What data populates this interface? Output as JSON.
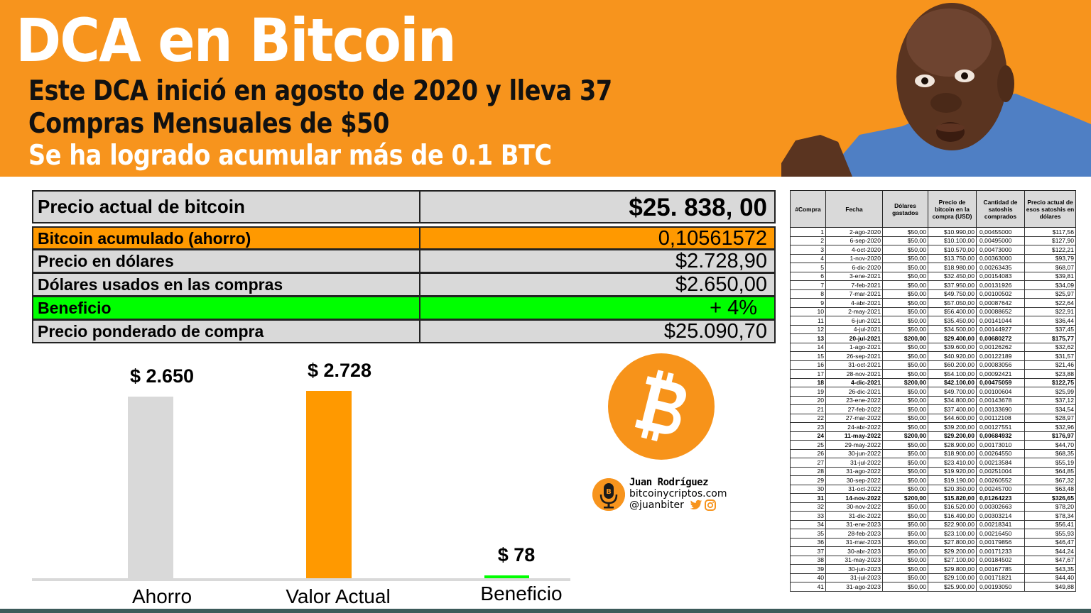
{
  "header": {
    "title": "DCA en Bitcoin",
    "subtitle_line1": "Este DCA inició en agosto de 2020 y lleva 37",
    "subtitle_line2": "Compras Mensuales de $50",
    "subtitle_line3": "Se ha logrado acumular más de 0.1 BTC",
    "background_color": "#f7941d"
  },
  "photo": {
    "description": "surprised man in blue shirt"
  },
  "summary": {
    "rows": [
      {
        "label": "Precio actual de bitcoin",
        "value": "$25. 838, 00"
      },
      {
        "label": "Bitcoin acumulado (ahorro)",
        "value": "0,10561572"
      },
      {
        "label": "Precio en dólares",
        "value": "$2.728,90"
      },
      {
        "label": "Dólares usados en las compras",
        "value": "$2.650,00"
      },
      {
        "label": "Beneficio",
        "value": "+ 4%"
      },
      {
        "label": "Precio ponderado de compra",
        "value": "$25.090,70"
      }
    ]
  },
  "chart_data": {
    "type": "bar",
    "title": "",
    "categories": [
      "Ahorro",
      "Valor Actual",
      "Beneficio"
    ],
    "values": [
      2650,
      2728,
      78
    ],
    "value_labels": [
      "$ 2.650",
      "$ 2.728",
      "$ 78"
    ],
    "colors": [
      "#d9d9d9",
      "#ff9900",
      "#00ff00"
    ],
    "xlabel": "",
    "ylabel": "",
    "grid": false,
    "legend": "none"
  },
  "author": {
    "name": "Juan Rodríguez",
    "site": "bitcoinycriptos.com",
    "handle": "@juanbiter",
    "icons": [
      "podcast-mic-icon",
      "twitter-icon",
      "instagram-icon"
    ]
  },
  "purchases": {
    "columns": [
      "#Compra",
      "Fecha",
      "Dólares gastados",
      "Precio de bitcoin en la compra (USD)",
      "Cantidad de satoshis comprados",
      "Precio actual de esos satoshis en dólares"
    ],
    "rows": [
      [
        "1",
        "2-ago-2020",
        "$50,00",
        "$10.990,00",
        "0,00455000",
        "$117,56"
      ],
      [
        "2",
        "6-sep-2020",
        "$50,00",
        "$10.100,00",
        "0,00495000",
        "$127,90"
      ],
      [
        "3",
        "4-oct-2020",
        "$50,00",
        "$10.570,00",
        "0,00473000",
        "$122,21"
      ],
      [
        "4",
        "1-nov-2020",
        "$50,00",
        "$13.750,00",
        "0,00363000",
        "$93,79"
      ],
      [
        "5",
        "6-dic-2020",
        "$50,00",
        "$18.980,00",
        "0,00263435",
        "$68,07"
      ],
      [
        "6",
        "3-ene-2021",
        "$50,00",
        "$32.450,00",
        "0,00154083",
        "$39,81"
      ],
      [
        "7",
        "7-feb-2021",
        "$50,00",
        "$37.950,00",
        "0,00131926",
        "$34,09"
      ],
      [
        "8",
        "7-mar-2021",
        "$50,00",
        "$49.750,00",
        "0,00100502",
        "$25,97"
      ],
      [
        "9",
        "4-abr-2021",
        "$50,00",
        "$57.050,00",
        "0,00087642",
        "$22,64"
      ],
      [
        "10",
        "2-may-2021",
        "$50,00",
        "$56.400,00",
        "0,00088652",
        "$22,91"
      ],
      [
        "11",
        "6-jun-2021",
        "$50,00",
        "$35.450,00",
        "0,00141044",
        "$36,44"
      ],
      [
        "12",
        "4-jul-2021",
        "$50,00",
        "$34.500,00",
        "0,00144927",
        "$37,45"
      ],
      [
        "13",
        "20-jul-2021",
        "$200,00",
        "$29.400,00",
        "0,00680272",
        "$175,77"
      ],
      [
        "14",
        "1-ago-2021",
        "$50,00",
        "$39.600,00",
        "0,00126262",
        "$32,62"
      ],
      [
        "15",
        "26-sep-2021",
        "$50,00",
        "$40.920,00",
        "0,00122189",
        "$31,57"
      ],
      [
        "16",
        "31-oct-2021",
        "$50,00",
        "$60.200,00",
        "0,00083056",
        "$21,46"
      ],
      [
        "17",
        "28-nov-2021",
        "$50,00",
        "$54.100,00",
        "0,00092421",
        "$23,88"
      ],
      [
        "18",
        "4-dic-2021",
        "$200,00",
        "$42.100,00",
        "0,00475059",
        "$122,75"
      ],
      [
        "19",
        "26-dic-2021",
        "$50,00",
        "$49.700,00",
        "0,00100604",
        "$25,99"
      ],
      [
        "20",
        "23-ene-2022",
        "$50,00",
        "$34.800,00",
        "0,00143678",
        "$37,12"
      ],
      [
        "21",
        "27-feb-2022",
        "$50,00",
        "$37.400,00",
        "0,00133690",
        "$34,54"
      ],
      [
        "22",
        "27-mar-2022",
        "$50,00",
        "$44.600,00",
        "0,00112108",
        "$28,97"
      ],
      [
        "23",
        "24-abr-2022",
        "$50,00",
        "$39.200,00",
        "0,00127551",
        "$32,96"
      ],
      [
        "24",
        "11-may-2022",
        "$200,00",
        "$29.200,00",
        "0,00684932",
        "$176,97"
      ],
      [
        "25",
        "29-may-2022",
        "$50,00",
        "$28.900,00",
        "0,00173010",
        "$44,70"
      ],
      [
        "26",
        "30-jun-2022",
        "$50,00",
        "$18.900,00",
        "0,00264550",
        "$68,35"
      ],
      [
        "27",
        "31-jul-2022",
        "$50,00",
        "$23.410,00",
        "0,00213584",
        "$55,19"
      ],
      [
        "28",
        "31-ago-2022",
        "$50,00",
        "$19.920,00",
        "0,00251004",
        "$64,85"
      ],
      [
        "29",
        "30-sep-2022",
        "$50,00",
        "$19.190,00",
        "0,00260552",
        "$67,32"
      ],
      [
        "30",
        "31-oct-2022",
        "$50,00",
        "$20.350,00",
        "0,00245700",
        "$63,48"
      ],
      [
        "31",
        "14-nov-2022",
        "$200,00",
        "$15.820,00",
        "0,01264223",
        "$326,65"
      ],
      [
        "32",
        "30-nov-2022",
        "$50,00",
        "$16.520,00",
        "0,00302663",
        "$78,20"
      ],
      [
        "33",
        "31-dic-2022",
        "$50,00",
        "$16.490,00",
        "0,00303214",
        "$78,34"
      ],
      [
        "34",
        "31-ene-2023",
        "$50,00",
        "$22.900,00",
        "0,00218341",
        "$56,41"
      ],
      [
        "35",
        "28-feb-2023",
        "$50,00",
        "$23.100,00",
        "0,00216450",
        "$55,93"
      ],
      [
        "36",
        "31-mar-2023",
        "$50,00",
        "$27.800,00",
        "0,00179856",
        "$46,47"
      ],
      [
        "37",
        "30-abr-2023",
        "$50,00",
        "$29.200,00",
        "0,00171233",
        "$44,24"
      ],
      [
        "38",
        "31-may-2023",
        "$50,00",
        "$27.100,00",
        "0,00184502",
        "$47,67"
      ],
      [
        "39",
        "30-jun-2023",
        "$50,00",
        "$29.800,00",
        "0,00167785",
        "$43,35"
      ],
      [
        "40",
        "31-jul-2023",
        "$50,00",
        "$29.100,00",
        "0,00171821",
        "$44,40"
      ],
      [
        "41",
        "31-ago-2023",
        "$50,00",
        "$25.900,00",
        "0,00193050",
        "$49,88"
      ]
    ],
    "bold_rows": [
      13,
      18,
      24,
      31
    ]
  }
}
